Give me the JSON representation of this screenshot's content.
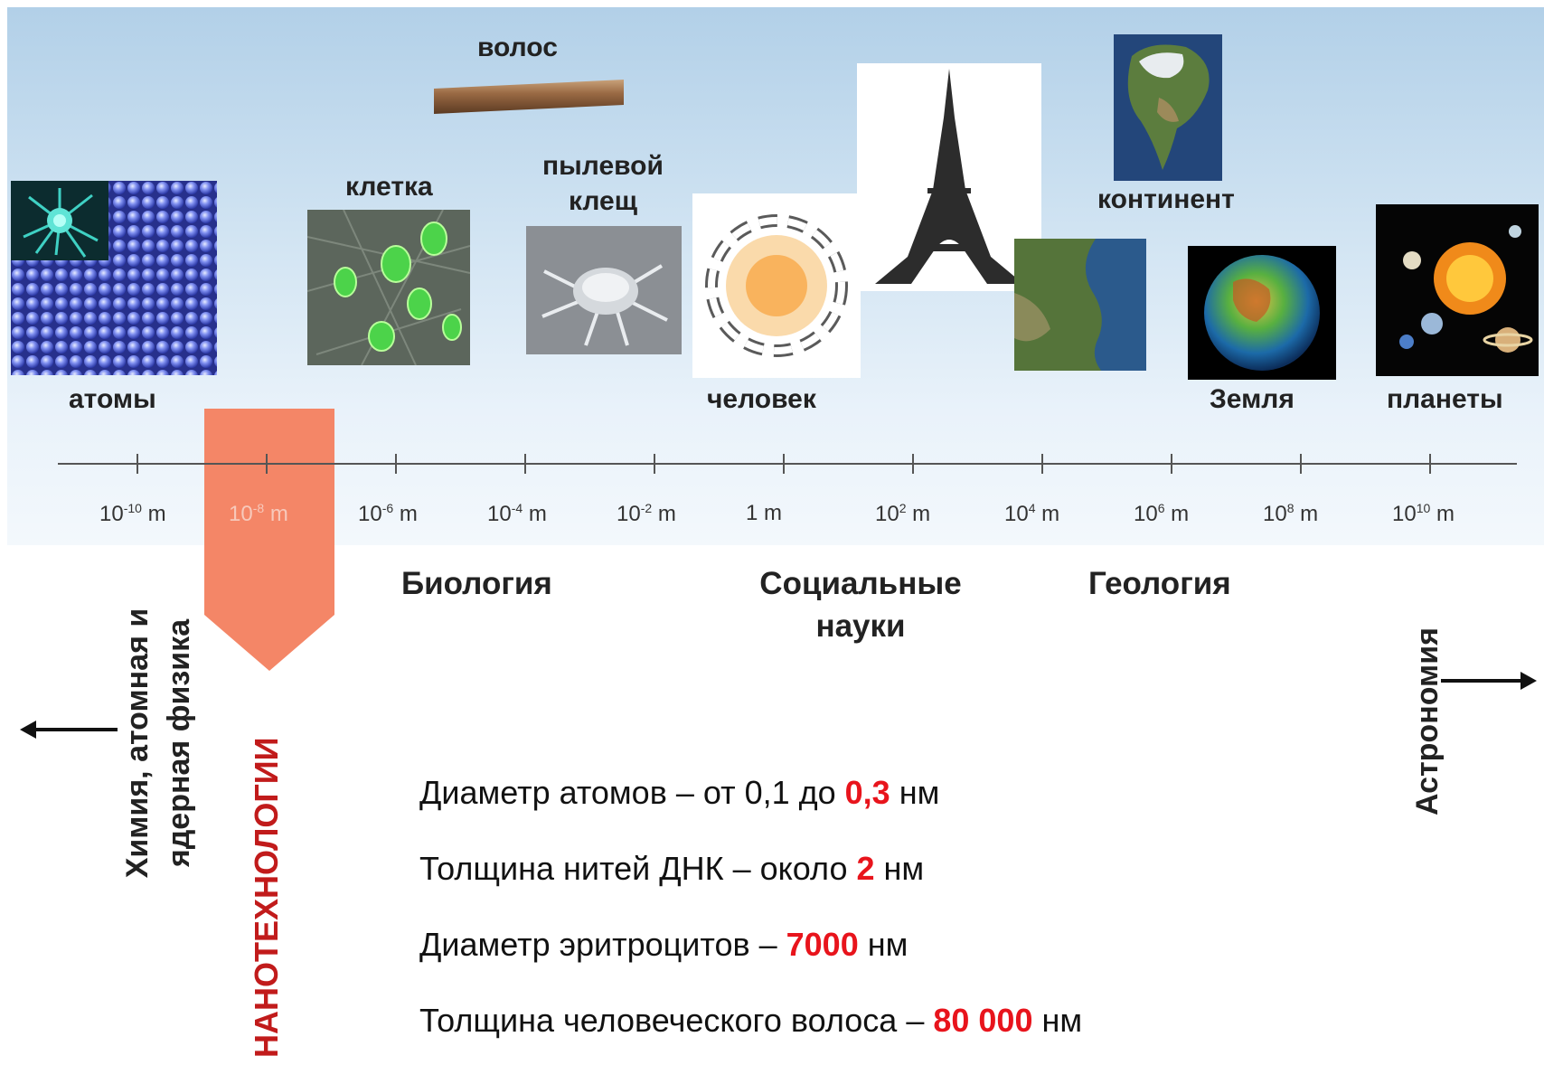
{
  "scale": {
    "ticks": [
      {
        "base": "10",
        "exp": "-10",
        "unit": " m"
      },
      {
        "base": "10",
        "exp": "-8",
        "unit": " m"
      },
      {
        "base": "10",
        "exp": "-6",
        "unit": " m"
      },
      {
        "base": "10",
        "exp": "-4",
        "unit": " m"
      },
      {
        "base": "10",
        "exp": "-2",
        "unit": " m"
      },
      {
        "base": "1",
        "exp": "",
        "unit": " m"
      },
      {
        "base": "10",
        "exp": "2",
        "unit": " m"
      },
      {
        "base": "10",
        "exp": "4",
        "unit": " m"
      },
      {
        "base": "10",
        "exp": "6",
        "unit": " m"
      },
      {
        "base": "10",
        "exp": "8",
        "unit": " m"
      },
      {
        "base": "10",
        "exp": "10",
        "unit": " m"
      }
    ]
  },
  "objects": {
    "atoms": "атомы",
    "hair": "волос",
    "cell": "клетка",
    "mite": "пылевой клещ",
    "human": "человек",
    "continent": "континент",
    "earth": "Земля",
    "planets": "планеты"
  },
  "fields": {
    "chemistry": "Химия, атомная и ядерная физика",
    "nano": "НАНОТЕХНОЛОГИИ",
    "biology": "Биология",
    "social": "Социальные науки",
    "geology": "Геология",
    "astronomy": "Астрономия"
  },
  "facts": [
    {
      "prefix": "Диаметр атомов – от 0,1 до ",
      "value": "0,3",
      "suffix": " нм"
    },
    {
      "prefix": "Толщина нитей ДНК – около ",
      "value": "2",
      "suffix": " нм"
    },
    {
      "prefix": "Диаметр эритроцитов – ",
      "value": "7000",
      "suffix": " нм"
    },
    {
      "prefix": "Толщина человеческого волоса – ",
      "value": "80 000",
      "suffix": " нм"
    }
  ],
  "colors": {
    "nano_band": "#f48667",
    "nano_text": "#c11b1b",
    "fact_value": "#e8141c"
  }
}
